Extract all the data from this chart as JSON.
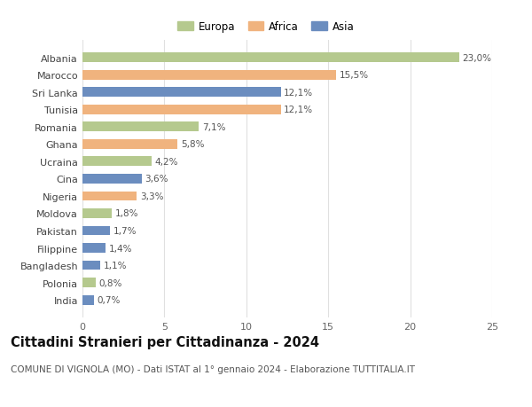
{
  "countries": [
    "Albania",
    "Marocco",
    "Sri Lanka",
    "Tunisia",
    "Romania",
    "Ghana",
    "Ucraina",
    "Cina",
    "Nigeria",
    "Moldova",
    "Pakistan",
    "Filippine",
    "Bangladesh",
    "Polonia",
    "India"
  ],
  "values": [
    23.0,
    15.5,
    12.1,
    12.1,
    7.1,
    5.8,
    4.2,
    3.6,
    3.3,
    1.8,
    1.7,
    1.4,
    1.1,
    0.8,
    0.7
  ],
  "labels": [
    "23,0%",
    "15,5%",
    "12,1%",
    "12,1%",
    "7,1%",
    "5,8%",
    "4,2%",
    "3,6%",
    "3,3%",
    "1,8%",
    "1,7%",
    "1,4%",
    "1,1%",
    "0,8%",
    "0,7%"
  ],
  "continents": [
    "Europa",
    "Africa",
    "Asia",
    "Africa",
    "Europa",
    "Africa",
    "Europa",
    "Asia",
    "Africa",
    "Europa",
    "Asia",
    "Asia",
    "Asia",
    "Europa",
    "Asia"
  ],
  "colors": {
    "Europa": "#b5c98e",
    "Africa": "#f0b37e",
    "Asia": "#6b8dbf"
  },
  "title": "Cittadini Stranieri per Cittadinanza - 2024",
  "subtitle": "COMUNE DI VIGNOLA (MO) - Dati ISTAT al 1° gennaio 2024 - Elaborazione TUTTITALIA.IT",
  "xlim": [
    0,
    25
  ],
  "xticks": [
    0,
    5,
    10,
    15,
    20,
    25
  ],
  "background_color": "#ffffff",
  "grid_color": "#e0e0e0",
  "bar_height": 0.55,
  "title_fontsize": 10.5,
  "subtitle_fontsize": 7.5,
  "label_fontsize": 7.5,
  "tick_fontsize": 8,
  "legend_fontsize": 8.5
}
